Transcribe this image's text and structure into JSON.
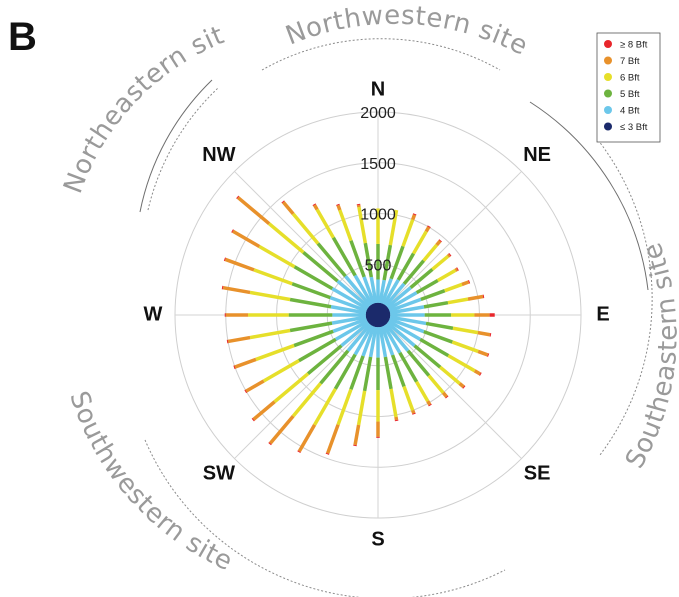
{
  "panel_letter": "B",
  "site_labels": {
    "northwestern": "Northwestern site",
    "northeastern": "Northeastern site",
    "southeastern": "Southeastern site",
    "southwestern": "Southwestern site"
  },
  "chart_data": {
    "type": "polar-stacked-bar",
    "directions": [
      "N",
      "NE",
      "E",
      "SE",
      "S",
      "SW",
      "W",
      "NW"
    ],
    "radial_ticks": [
      "500",
      "1000",
      "1500",
      "2000"
    ],
    "radial_max": 2000,
    "legend": [
      {
        "label": "≥ 8 Bft",
        "color": "#e8262b"
      },
      {
        "label": "7 Bft",
        "color": "#e8912b"
      },
      {
        "label": "6 Bft",
        "color": "#e6df2a"
      },
      {
        "label": "5 Bft",
        "color": "#6db33f"
      },
      {
        "label": "4 Bft",
        "color": "#6cc7ea"
      },
      {
        "label": "≤ 3 Bft",
        "color": "#1b2a6b"
      }
    ],
    "bearings_deg": [
      0,
      10,
      20,
      30,
      40,
      50,
      60,
      70,
      80,
      90,
      100,
      110,
      120,
      130,
      140,
      150,
      160,
      170,
      180,
      190,
      200,
      210,
      220,
      230,
      240,
      250,
      260,
      270,
      280,
      290,
      300,
      310,
      320,
      330,
      340,
      350
    ],
    "cumulative_totals": {
      "le3": [
        120,
        120,
        120,
        120,
        120,
        120,
        120,
        120,
        120,
        120,
        120,
        120,
        120,
        120,
        120,
        120,
        120,
        120,
        120,
        120,
        120,
        120,
        120,
        120,
        120,
        120,
        120,
        120,
        120,
        120,
        120,
        120,
        120,
        120,
        120,
        120
      ],
      "le4": [
        350,
        350,
        380,
        400,
        400,
        420,
        440,
        450,
        460,
        460,
        480,
        480,
        480,
        470,
        460,
        430,
        420,
        420,
        420,
        420,
        430,
        450,
        460,
        470,
        480,
        470,
        460,
        450,
        470,
        500,
        520,
        520,
        500,
        450,
        400,
        380
      ],
      "le5": [
        700,
        700,
        720,
        700,
        700,
        700,
        680,
        700,
        700,
        720,
        750,
        780,
        800,
        800,
        780,
        760,
        750,
        740,
        740,
        760,
        780,
        840,
        880,
        900,
        900,
        880,
        880,
        880,
        880,
        900,
        950,
        960,
        920,
        880,
        780,
        720
      ],
      "le6": [
        1050,
        1050,
        1000,
        950,
        900,
        900,
        880,
        880,
        900,
        950,
        1000,
        1050,
        1100,
        1050,
        1000,
        980,
        1000,
        1020,
        1050,
        1100,
        1150,
        1250,
        1300,
        1330,
        1300,
        1280,
        1280,
        1280,
        1280,
        1300,
        1350,
        1400,
        1300,
        1200,
        1100,
        1080
      ],
      "le7": [
        1050,
        1050,
        1050,
        1000,
        950,
        920,
        900,
        950,
        1050,
        1100,
        1120,
        1150,
        1160,
        1100,
        1050,
        1020,
        1030,
        1050,
        1200,
        1300,
        1450,
        1550,
        1650,
        1600,
        1500,
        1500,
        1500,
        1500,
        1550,
        1600,
        1650,
        1800,
        1450,
        1250,
        1150,
        1100
      ],
      "total": [
        1050,
        1050,
        1060,
        1010,
        960,
        930,
        910,
        960,
        1060,
        1150,
        1130,
        1160,
        1170,
        1110,
        1060,
        1030,
        1040,
        1060,
        1210,
        1310,
        1460,
        1560,
        1660,
        1610,
        1510,
        1510,
        1510,
        1510,
        1560,
        1610,
        1660,
        1810,
        1460,
        1260,
        1160,
        1110
      ]
    }
  }
}
